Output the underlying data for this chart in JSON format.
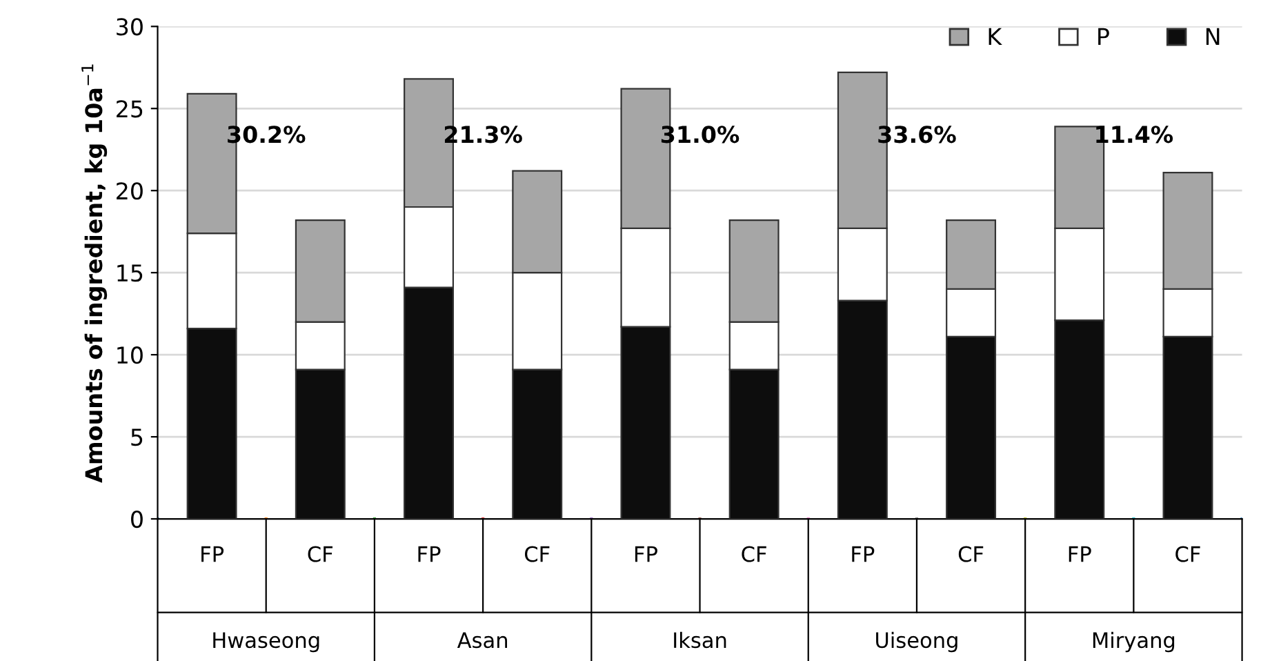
{
  "chart_data": {
    "type": "bar",
    "stacked": true,
    "ylabel": "Amounts of ingredient, kg 10a$^{−1}$",
    "categories": [
      "FP",
      "CF",
      "FP",
      "CF",
      "FP",
      "CF",
      "FP",
      "CF",
      "FP",
      "CF"
    ],
    "series": [
      {
        "name": "N",
        "color": "#0d0d0d",
        "values": [
          11.6,
          9.1,
          14.1,
          9.1,
          11.7,
          9.1,
          13.3,
          11.1,
          12.1,
          11.1
        ]
      },
      {
        "name": "P",
        "color": "#ffffff",
        "values": [
          5.8,
          2.9,
          4.9,
          5.9,
          6.0,
          2.9,
          4.4,
          2.9,
          5.6,
          2.9
        ]
      },
      {
        "name": "K",
        "color": "#a6a6a6",
        "values": [
          8.5,
          6.2,
          7.8,
          6.2,
          8.5,
          6.2,
          9.5,
          4.2,
          6.2,
          7.1
        ]
      }
    ],
    "annotations": [
      "30.2%",
      "21.3%",
      "31.0%",
      "33.6%",
      "11.4%",
      "Hwaseong",
      "Asan",
      "Iksan",
      "Uiseong",
      "Miryang"
    ],
    "ylim": [
      0,
      30
    ],
    "yticks": [
      0,
      5,
      10,
      15,
      20,
      25,
      30
    ],
    "grid": "y",
    "legend": "top right"
  }
}
